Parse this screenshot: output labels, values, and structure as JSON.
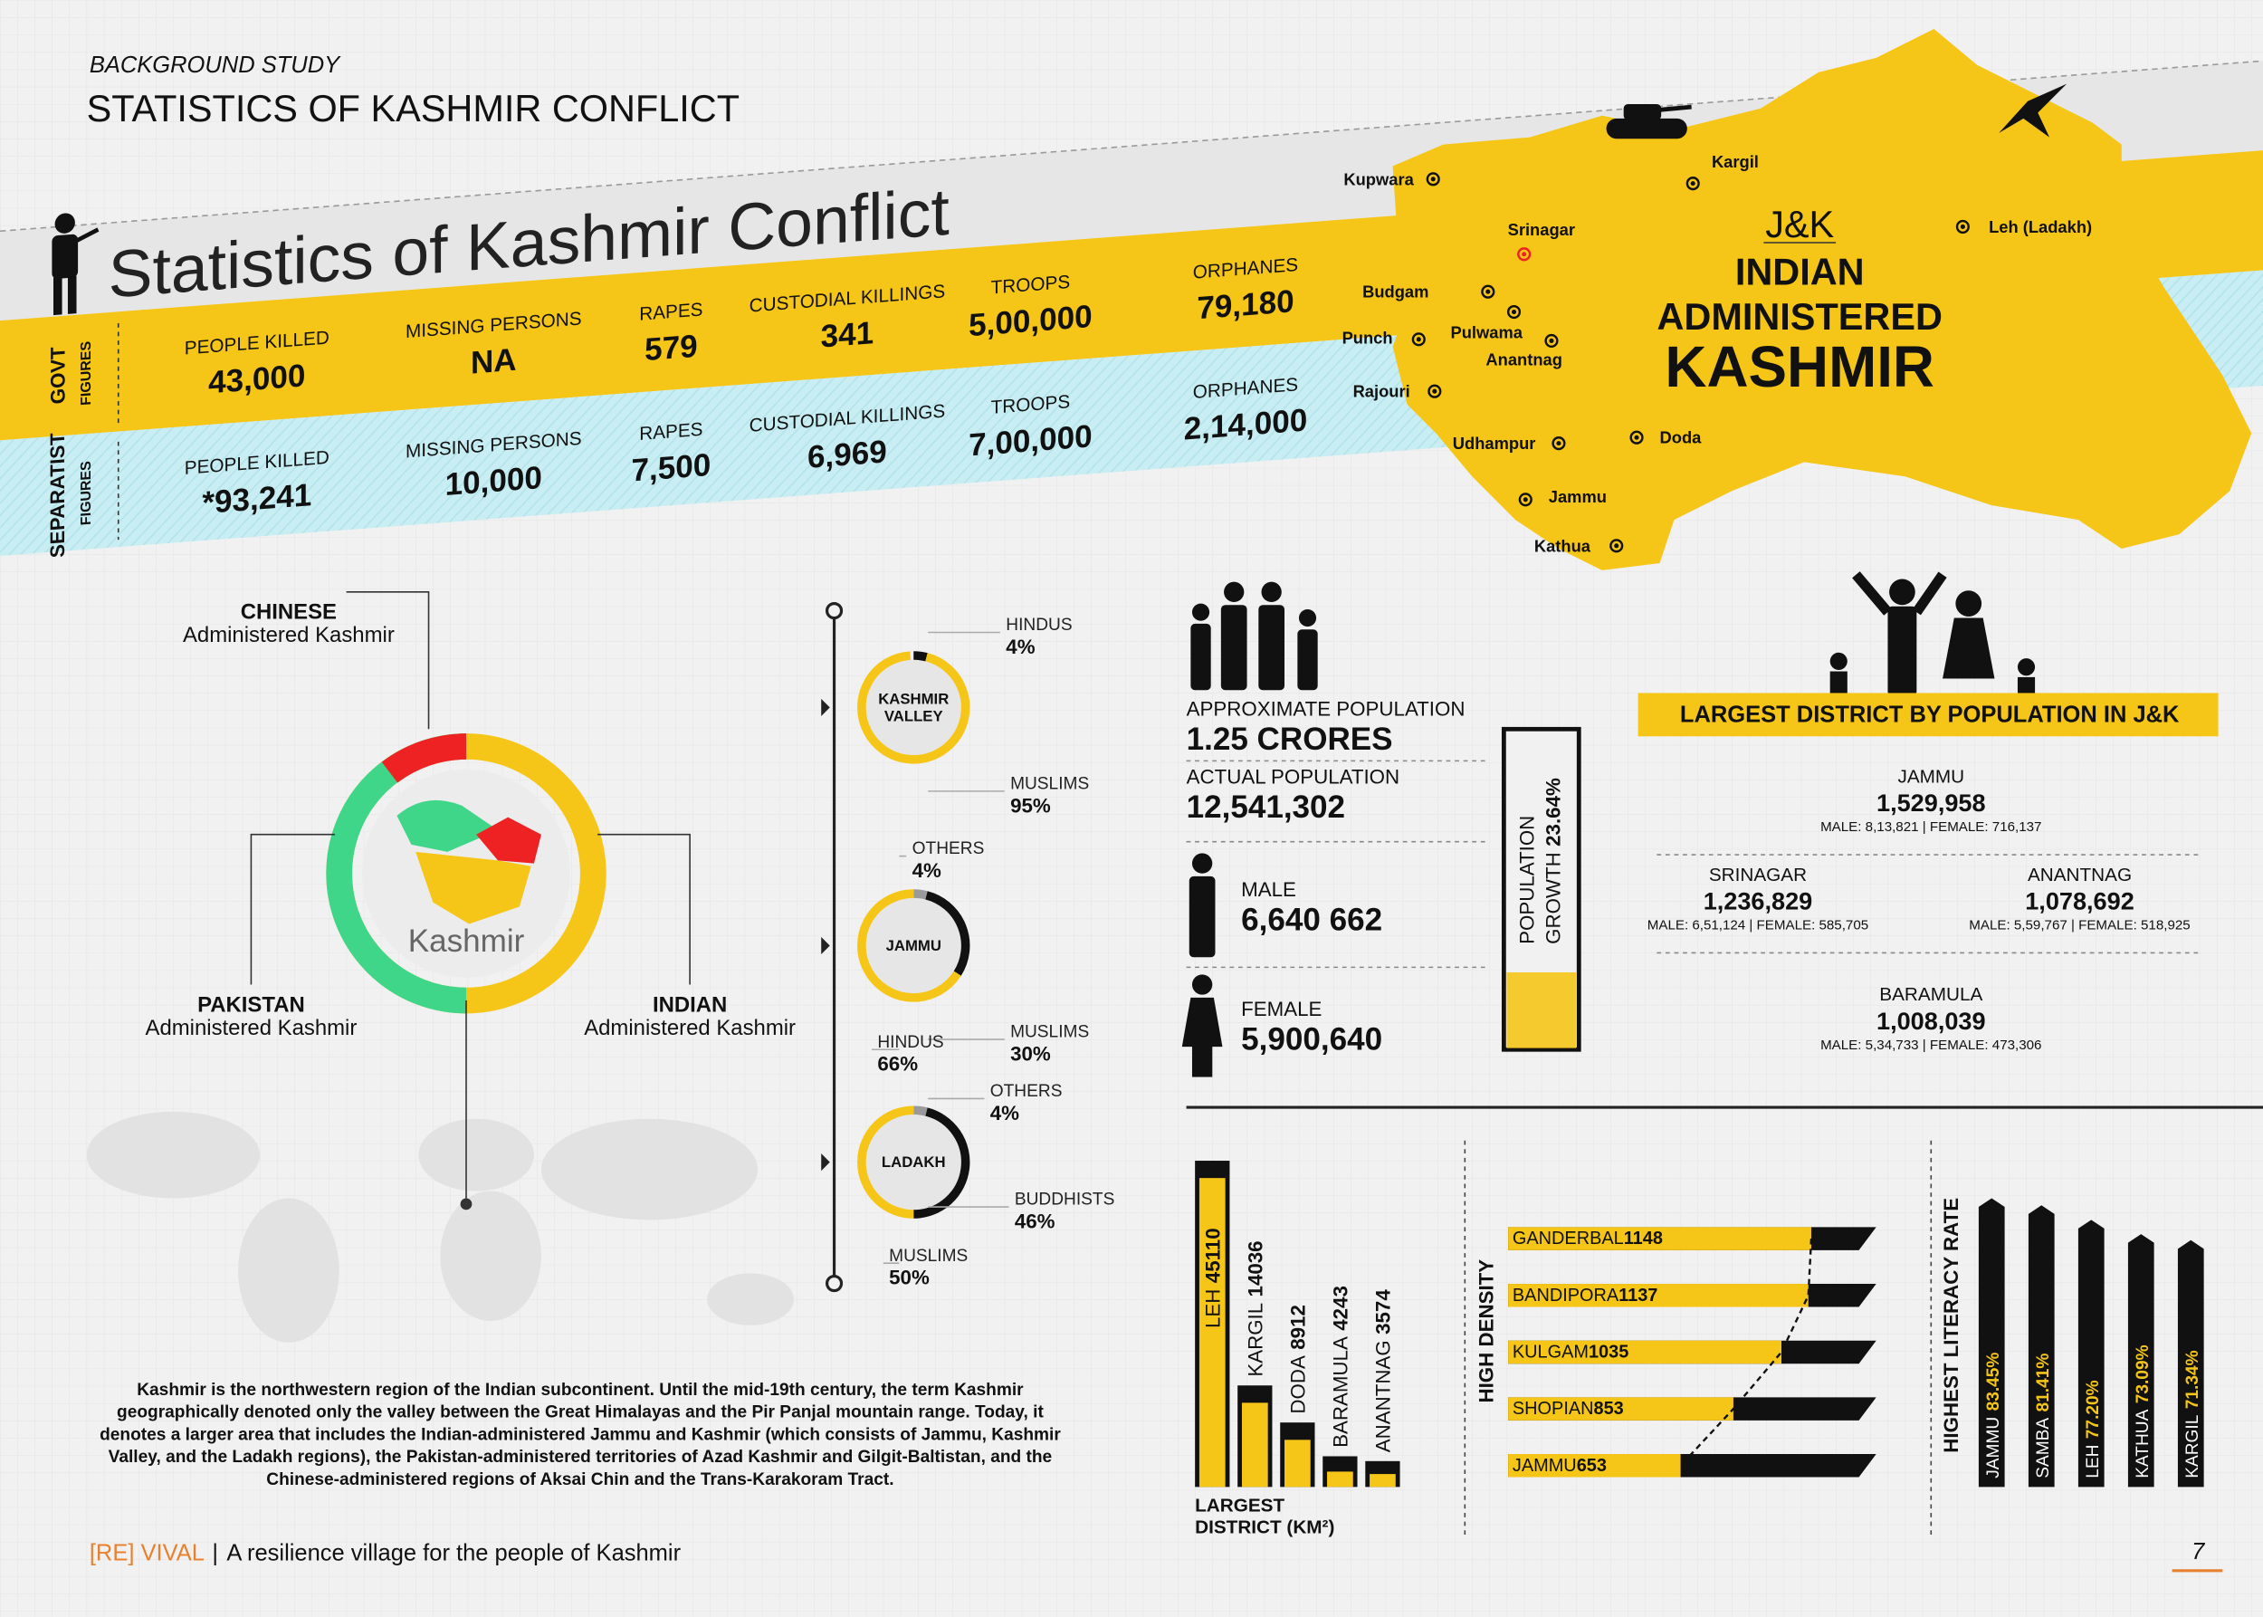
{
  "header": {
    "kicker": "BACKGROUND STUDY",
    "title": "STATISTICS OF KASHMIR CONFLICT"
  },
  "banner": {
    "title": "Statistics of Kashmir Conflict",
    "rows": [
      {
        "label": "GOVT",
        "sublabel": "FIGURES",
        "items": [
          {
            "label": "PEOPLE KILLED",
            "value": "43,000"
          },
          {
            "label": "MISSING PERSONS",
            "value": "NA"
          },
          {
            "label": "RAPES",
            "value": "579"
          },
          {
            "label": "CUSTODIAL KILLINGS",
            "value": "341"
          },
          {
            "label": "TROOPS",
            "value": "5,00,000"
          },
          {
            "label": "ORPHANES",
            "value": "79,180"
          }
        ]
      },
      {
        "label": "SEPARATIST",
        "sublabel": "FIGURES",
        "items": [
          {
            "label": "PEOPLE KILLED",
            "value": "*93,241"
          },
          {
            "label": "MISSING PERSONS",
            "value": "10,000"
          },
          {
            "label": "RAPES",
            "value": "7,500"
          },
          {
            "label": "CUSTODIAL KILLINGS",
            "value": "6,969"
          },
          {
            "label": "TROOPS",
            "value": "7,00,000"
          },
          {
            "label": "ORPHANES",
            "value": "2,14,000"
          }
        ]
      }
    ]
  },
  "map": {
    "heading": "J&K",
    "title": [
      "INDIAN",
      "ADMINISTERED",
      "KASHMIR"
    ],
    "places": [
      "Kupwara",
      "Kargil",
      "Srinagar",
      "Leh (Ladakh)",
      "Budgam",
      "Pulwama",
      "Anantnag",
      "Punch",
      "Rajouri",
      "Udhampur",
      "Doda",
      "Jammu",
      "Kathua"
    ]
  },
  "regions": {
    "center": "Kashmir",
    "items": [
      {
        "name": "CHINESE",
        "sub": "Administered Kashmir"
      },
      {
        "name": "PAKISTAN",
        "sub": "Administered Kashmir"
      },
      {
        "name": "INDIAN",
        "sub": "Administered Kashmir"
      }
    ]
  },
  "religion": [
    {
      "region": [
        "KASHMIR",
        "VALLEY"
      ],
      "groups": [
        {
          "name": "HINDUS",
          "value": 4,
          "value_label": "4%",
          "color": "#111111"
        },
        {
          "name": "MUSLIMS",
          "value": 95,
          "value_label": "95%",
          "color": "#f5c518"
        }
      ]
    },
    {
      "region": [
        "JAMMU"
      ],
      "groups": [
        {
          "name": "OTHERS",
          "value": 4,
          "value_label": "4%",
          "color": "#9a9a9a"
        },
        {
          "name": "MUSLIMS",
          "value": 30,
          "value_label": "30%",
          "color": "#111111"
        },
        {
          "name": "HINDUS",
          "value": 66,
          "value_label": "66%",
          "color": "#f5c518"
        }
      ]
    },
    {
      "region": [
        "LADAKH"
      ],
      "groups": [
        {
          "name": "OTHERS",
          "value": 4,
          "value_label": "4%",
          "color": "#9a9a9a"
        },
        {
          "name": "BUDDHISTS",
          "value": 46,
          "value_label": "46%",
          "color": "#111111"
        },
        {
          "name": "MUSLIMS",
          "value": 50,
          "value_label": "50%",
          "color": "#f5c518"
        }
      ]
    }
  ],
  "population": {
    "approx_label": "APPROXIMATE POPULATION",
    "approx": "1.25 CRORES",
    "actual_label": "ACTUAL POPULATION",
    "actual": "12,541,302",
    "male_label": "MALE",
    "male": "6,640 662",
    "female_label": "FEMALE",
    "female": "5,900,640",
    "growth": {
      "label": [
        "POPULATION",
        "GROWTH"
      ],
      "value": 23.64,
      "value_label": "23.64%"
    }
  },
  "districts": {
    "title": "LARGEST DISTRICT BY POPULATION IN J&K",
    "items": [
      {
        "name": "JAMMU",
        "total": "1,529,958",
        "detail": "MALE: 8,13,821 | FEMALE: 716,137"
      },
      {
        "name": "SRINAGAR",
        "total": "1,236,829",
        "detail": "MALE: 6,51,124 | FEMALE: 585,705"
      },
      {
        "name": "ANANTNAG",
        "total": "1,078,692",
        "detail": "MALE: 5,59,767 | FEMALE: 518,925"
      },
      {
        "name": "BARAMULA",
        "total": "1,008,039",
        "detail": "MALE: 5,34,733 | FEMALE: 473,306"
      }
    ]
  },
  "area": {
    "caption": [
      "LARGEST",
      "DISTRICT (KM²)"
    ],
    "items": [
      {
        "name": "LEH",
        "value": 45110
      },
      {
        "name": "KARGIL",
        "value": 14036
      },
      {
        "name": "DODA",
        "value": 8912
      },
      {
        "name": "BARAMULA",
        "value": 4243
      },
      {
        "name": "ANANTNAG",
        "value": 3574
      }
    ]
  },
  "density": {
    "caption": "HIGH DENSITY",
    "items": [
      {
        "name": "GANDERBAL",
        "value": 1148
      },
      {
        "name": "BANDIPORA",
        "value": 1137
      },
      {
        "name": "KULGAM",
        "value": 1035
      },
      {
        "name": "SHOPIAN",
        "value": 853
      },
      {
        "name": "JAMMU",
        "value": 653
      }
    ]
  },
  "literacy": {
    "caption": "HIGHEST LITERACY RATE",
    "items": [
      {
        "name": "JAMMU",
        "value": 83.45,
        "value_label": "83.45%"
      },
      {
        "name": "SAMBA",
        "value": 81.41,
        "value_label": "81.41%"
      },
      {
        "name": "LEH",
        "value": 77.2,
        "value_label": "77.20%"
      },
      {
        "name": "KATHUA",
        "value": 73.09,
        "value_label": "73.09%"
      },
      {
        "name": "KARGIL",
        "value": 71.34,
        "value_label": "71.34%"
      }
    ]
  },
  "paragraph": [
    "Kashmir is the northwestern region of the Indian subcontinent. Until the mid-19th century, the term Kashmir",
    "geographically denoted only the valley between the Great Himalayas and the Pir Panjal mountain range. Today, it",
    "denotes a larger area that includes the Indian-administered Jammu and Kashmir (which consists of Jammu, Kashmir",
    "Valley, and the Ladakh regions), the Pakistan-administered territories of Azad Kashmir and Gilgit-Baltistan, and the",
    "Chinese-administered regions of Aksai Chin and the Trans-Karakoram Tract."
  ],
  "footer": {
    "brand": "[RE] VIVAL",
    "tagline": "A resilience village for the people of Kashmir",
    "page": "7"
  }
}
